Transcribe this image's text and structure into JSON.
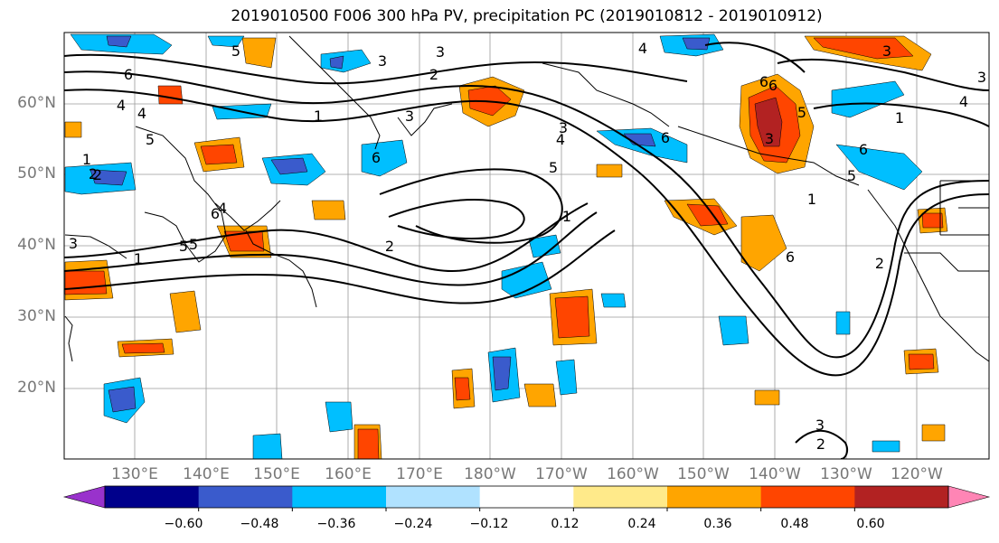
{
  "title": "2019010500 F006 300 hPa PV, precipitation PC (2019010812 - 2019010912)",
  "lat_labels": [
    "60°N",
    "50°N",
    "40°N",
    "30°N",
    "20°N"
  ],
  "lon_labels": [
    "130°E",
    "140°E",
    "150°E",
    "160°E",
    "170°E",
    "180°W",
    "170°W",
    "160°W",
    "150°W",
    "140°W",
    "130°W",
    "120°W"
  ],
  "colorbar": {
    "colors": [
      "#9932CC",
      "#00008B",
      "#3A5BCC",
      "#00BFFF",
      "#B0E2FF",
      "#FFFFFF",
      "#FFEA8A",
      "#FFA500",
      "#FF4500",
      "#B22222",
      "#FF85B5"
    ],
    "tick_labels": [
      "−0.60",
      "−0.48",
      "−0.36",
      "−0.24",
      "−0.12",
      "0.12",
      "0.24",
      "0.36",
      "0.48",
      "0.60"
    ]
  },
  "contour_labels": [
    "6",
    "4",
    "2",
    "1",
    "5",
    "3",
    "5",
    "1",
    "5",
    "6",
    "4",
    "1",
    "3",
    "6",
    "5",
    "3",
    "2",
    "3",
    "4",
    "3",
    "2",
    "6",
    "5",
    "6",
    "1",
    "6",
    "1",
    "2",
    "3",
    "6",
    "5",
    "4",
    "3",
    "6",
    "5",
    "4",
    "2",
    "4",
    "1",
    "2",
    "3",
    "3"
  ]
}
